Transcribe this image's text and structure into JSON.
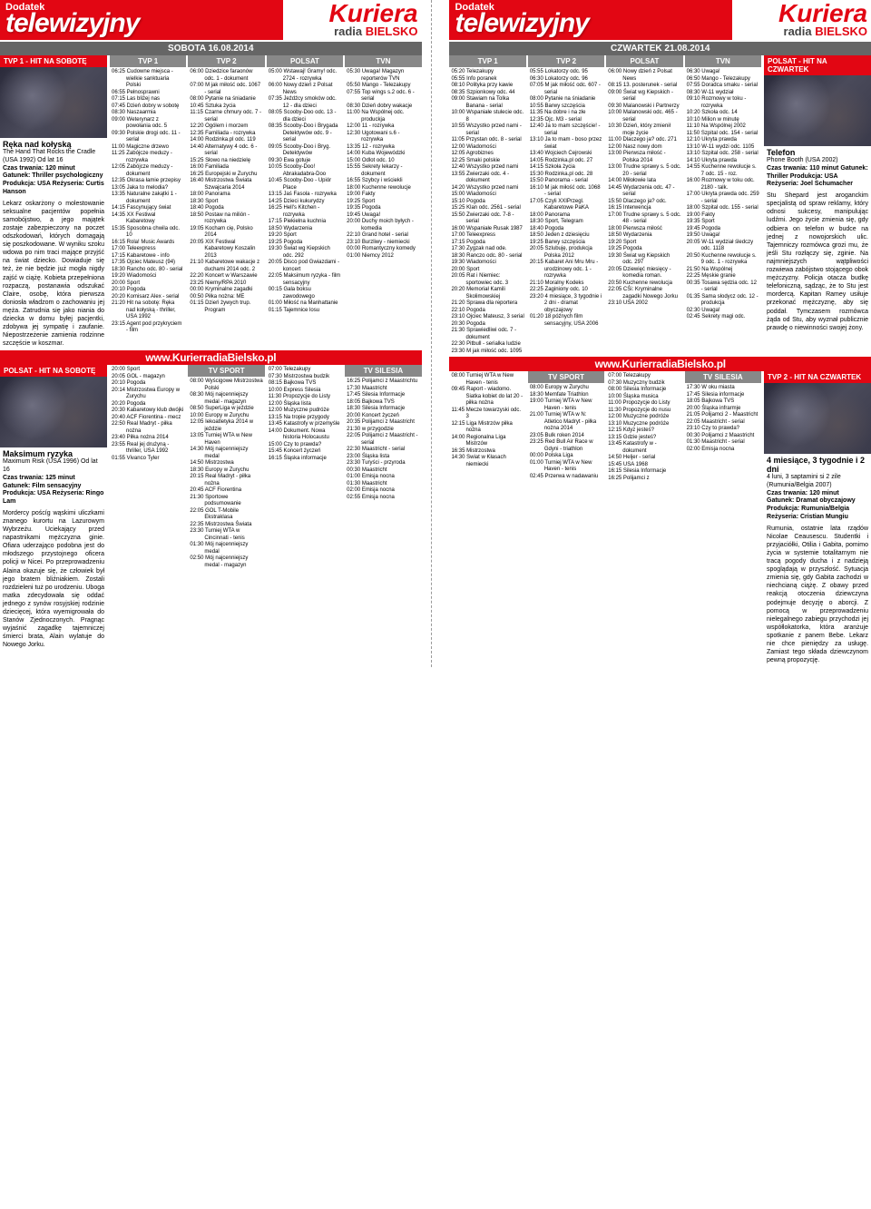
{
  "brand": {
    "kuriera": "Kuriera",
    "radio": "radia",
    "bielsko": "BIELSKO",
    "dodatek": "Dodatek",
    "telewizyjny": "telewizyjny"
  },
  "left": {
    "date": "SOBOTA 16.08.2014",
    "channels": [
      "TVP 1",
      "TVP 2",
      "POLSAT",
      "TVN"
    ],
    "hit1": {
      "bar": "TVP 1 - HIT NA SOBOTĘ",
      "title": "Ręka nad kołyską",
      "sub": "The Hand That Rocks the Cradle (USA 1992) Od lat 16",
      "info": "Czas trwania: 120 minut\nGatunek: Thriller psychologiczny\nProdukcja: USA\nReżyseria: Curtis Hanson",
      "desc": "Lekarz oskarżony o molestowanie seksualne pacjentów popełnia samobójstwo, a jego majątek zostaje zabezpieczony na poczet odszkodowań, których domagają się poszkodowane. W wyniku szoku wdowa po nim traci mające przyjść na świat dziecko. Dowiaduje się też, że nie będzie już mogła nigdy zajść w ciążę. Kobieta przepełniona rozpaczą, postanawia odszukać Claire, osobę, która pierwsza doniosła władzom o zachowaniu jej męża. Zatrudnia się jako niania do dziecka w domu byłej pacjentki, zdobywa jej sympatię i zaufanie. Niepostrzeżenie zamienia rodzinne szczęście w koszmar."
    },
    "hit2": {
      "bar": "POLSAT - HIT NA SOBOTĘ",
      "title": "Maksimum ryzyka",
      "sub": "Maximum Risk (USA 1996) Od lat 16",
      "info": "Czas trwania: 125 minut\nGatunek: Film sensacyjny\nProdukcja: USA\nReżyseria: Ringo Lam",
      "desc": "Mordercy poścíg wąskimi uliczkami znanego kurortu na Lazurowym Wybrzeżu. Uciekający przed napastnikami mężczyzna ginie. Ofiara uderzająco podobna jest do młodszego przystojnego oficera policji w Nicei. Po przeprowadzeniu Alaina okazuje się, że człowiek był jego bratem bliźniakiem. Zostali rozdzieleni tuż po urodzeniu. Uboga matka zdecydowała się oddać jednego z synów rosyjskiej rodzinie dziecięcej, która wyemigrowała do Stanów Zjednoczonych. Pragnąc wyjaśnić zagadkę tajemniczej śmierci brata, Alain wylatuje do Nowego Jorku."
    },
    "top_rows": {
      "TVP 1": [
        "06:25 Cudowne miejsca - wielkie sanktuaria Polski",
        "06:55 Pełnosprawni",
        "07:15 Las bliżej nas",
        "07:45 Dzień dobry w sobotę",
        "08:30 Naszaarmia",
        "09:00 Weterynarz z powołania odc. 5",
        "09:30 Polskie drogi odc. 11 - serial",
        "11:00 Magiczne drzewo",
        "11:25 Zabójcze meduzy - rozrywka",
        "12:05 Zabójcze meduzy - dokument",
        "12:35 Okrasa łamie przepisy",
        "13:05 Jaka to melodia?",
        "13:35 Naturalne zakątki 1 - dokument",
        "14:15 Fascynujący świat",
        "14:35 XX Festiwal Kabaretowy",
        "15:35 Sposobna chwila odc. 10",
        "16:15 Rola! Music Awards",
        "17:00 Teleexpress",
        "17:15 Kabaretowe - info",
        "17:35 Ojciec Mateusz (94)",
        "18:30 Rancho odc. 80 - serial",
        "19:20 Wiadomości",
        "20:00 Sport",
        "20:10 Pogoda",
        "20:20 Komisarz Alex - serial",
        "21:20 Hit na sobotę: Ręka nad kołyską - thriller, USA 1992",
        "23:15 Agent pod przykryciem - film"
      ],
      "TVP 2": [
        "06:00 Dziedzice faraonów odc. 1 - dokument",
        "07:00 M jak miłość odc. 1067 - serial",
        "08:00 Pytanie na śniadanie",
        "10:45 Sztuka życia",
        "11:15 Czarne chmury odc. 7 - serial",
        "12:20 Ogólem i morzem",
        "12:35 Familiada - rozrywka",
        "14:00 Rodzinka.pl odc. 119",
        "14:40 Alternatywy 4 odc. 6 - serial",
        "15:25 Słowo na niedzielę",
        "16:00 Familiada",
        "16:25 Europejski w Zurychu",
        "16:40 Mistrzostwa Świata Szwajcaria 2014",
        "18:00 Panorama",
        "18:30 Sport",
        "18:40 Pogoda",
        "18:50 Postaw na milión - rozrywka",
        "19:05 Kocham cię, Polsko 2014",
        "20:05 XIX Festiwal Kabaretowy Koszalin 2013",
        "21:10 Kabaretowe wakacje z duchami 2014 odc. 2",
        "22:20 Koncert w Warszawie",
        "23:25 Niemy/RPA 2010",
        "00:00 Kryminalne zagadki",
        "00:50 Piłka nożna: ME",
        "01:15 Dzień żywych trup. Program"
      ],
      "POLSAT": [
        "05:00 Wstawaj! Gramy! odc. 2724 - rozrywka",
        "06:00 Nowy dzień z Polsat News",
        "07:35 Jeźdźcy smoków odc. 12 - dla dzieci",
        "08:05 Scooby-Doo odc. 13 - dla dzieci",
        "08:35 Scooby-Doo i Brygada Detektywów odc. 9 - serial",
        "09:05 Scooby-Doo i Bryg. Detektywów",
        "09:30 Ewa gotuje",
        "10:05 Scooby-Doo! Abrakadabra-Doo",
        "10:45 Scooby-Doo - Upiór Place",
        "13:15 Jaś Fasola - rozrywka",
        "14:25 Dzieci kukurydzy",
        "16:25 Hell's Kitchen - rozrywka",
        "17:15 Piekielna kuchnia",
        "18:50 Wydarzenia",
        "19:20 Sport",
        "19:25 Pogoda",
        "19:30 Świat wg Kiepskich odc. 292",
        "20:05 Disco pod Gwiazdami - koncert",
        "22:05 Maksimum ryzyka - film sensacyjny",
        "00:15 Gala boksu zawodowego",
        "01:00 Miłość na Manhattanie",
        "01:15 Tajemnice losu"
      ],
      "TVN": [
        "05:30 Uwaga! Magazyn reporterów TVN",
        "05:50 Mango - Telezakupy",
        "07:55 Top wings s.2 odc. 6 - serial",
        "08:30 Dzień dobry wakacje",
        "11:00 Na Wspólnej odc. produckja",
        "12:00 11 - rozrywka",
        "12:30 Ugotowani s.6 - rozrywka",
        "13:35 12 - rozrywka",
        "14:00 Kuba Wojewódzki",
        "15:00 Odlot odc. 10",
        "15:55 Sekrety lekarzy - dokument",
        "16:55 Szybcy i wściekli",
        "18:00 Kuchenne rewolucje",
        "19:00 Fakty",
        "19:25 Sport",
        "19:35 Pogoda",
        "19:45 Uwaga!",
        "20:00 Duchy moich byłych - komedia",
        "22:10 Grand hotel - serial",
        "23:10 Burzliwy - niemiecki",
        "00:00 Romantyczny komedy",
        "01:00 Niemcy 2012"
      ]
    },
    "row2_bar": "TV SPORT",
    "row2_bar2": "TV SILESIA",
    "bottom_rows": {
      "TVP 1": [
        "20:00 Sport",
        "20:05 GOL - magazyn",
        "20:10 Pogoda",
        "20:14 Mistrzostwa Europy w Zurychu",
        "20:20 Pogoda",
        "20:30 Kabaretowy klub dwójki",
        "20:40 ACF Fiorentina - mecz",
        "22:50 Real Madryt - piłka nożna",
        "23:40 Piłka nożna 2014",
        "23:55 Real jej drużyną - thriller, USA 1992",
        "01:55 Vivanco Tyler"
      ],
      "TVP 2": [
        "08:00 Wyścigowe Mistrzostwa Polski",
        "08:30 Mój najcenniejszy medal - magazyn",
        "08:50 SuperLiga w jeździe",
        "10:00 Europy w Zurychu",
        "12:05 Iekoatletyka 2014 w jeździe",
        "13:05 Turniej WTA w New Haven",
        "14:30 Mój najcenniejszy medal",
        "14:50 Mistrzostwa",
        "18:30 Europy w Zurychu",
        "20:15 Real Madryt - piłka nożna",
        "20:45 ACF Fiorentina",
        "21:30 Sportowe podsumowanie",
        "22:05 GOL T-Mobile Ekstraklasa",
        "22:35 Mistrzostwa Świata",
        "23:30 Turniej WTA w Cincinnati - tenis",
        "01:30 Mój najcenniejszy medal",
        "02:50 Mój najcenniejszy medal - magazyn"
      ],
      "POLSAT": [
        "07:00 Telezakupy",
        "07:30 Mistrzostwa budzik",
        "08:15 Bajkowa TVS",
        "10:00 Express Silesia",
        "11:30 Propozycje do Listy",
        "12:00 Śląska lista",
        "12:00 Muzyczne pudróże",
        "13:15 Na tropie przygody",
        "13:45 Katastrofy w przemyśle",
        "14:00 Dokument. Nowa historia Holocaustu",
        "15:00 Czy to prawda?",
        "15:45 Koncert życzeń",
        "16:15 Śląska informacje"
      ],
      "TVN": [
        "16:25 Polijamci z Maastrichtu",
        "17:30 Maastricht",
        "17:45 Silesia Informacje",
        "18:05 Bajkowa TVS",
        "18:30 Silesia Informacje",
        "20:00 Koncert życzeń",
        "20:35 Polijamci z Maastricht",
        "21:30 w przygodzie",
        "22:05 Polijamci z Maastricht - serial",
        "22:30 Maastricht - serial",
        "23:00 Śląska lista",
        "23:30 Turyści - przyroda",
        "00:30 Maastricht",
        "01:00 Emisja nocna",
        "01:30 Maastricht",
        "02:00 Emisja nocna",
        "02:55 Emisja nocna"
      ]
    },
    "footer": "www.KurierradiaBielsko.pl"
  },
  "right": {
    "date": "CZWARTEK 21.08.2014",
    "channels": [
      "TVP 1",
      "TVP 2",
      "POLSAT",
      "TVN"
    ],
    "hit1": {
      "bar": "POLSAT - HIT NA CZWARTEK",
      "title": "Telefon",
      "sub": "Phone Booth (USA 2002)",
      "info": "Czas trwania: 110 minut\nGatunek: Thriller\nProdukcja: USA\nReżyseria: Joel Schumacher",
      "desc": "Stu Shepard jest aroganckim specjalistą od spraw reklamy, który odnosi sukcesy, manipulując ludźmi. Jego życie zmienia się, gdy odbiera on telefon w budce na jednej z nowojorskich ulic. Tajemniczy rozmówca grozi mu, że jeśli Stu rozłączy się, zginie. Na najmniejszych wątpliwości rozwiewa zabójstwo stojącego obok mężczyzny. Policja otacza budkę telefoniczną, sądząc, że to Stu jest mordercą. Kapitan Ramey usiłuje przekonać mężczyznę, aby się poddał. Tymczasem rozmówca żąda od Stu, aby wyznał publicznie prawdę o niewinności swojej żony."
    },
    "hit2": {
      "bar": "TVP 2 - HIT NA CZWARTEK",
      "title": "4 miesiące, 3 tygodnie i 2 dni",
      "sub": "4 luni, 3 saptamini si 2 zile (Rumunia/Belgia 2007)",
      "info": "Czas trwania: 120 minut\nGatunek: Dramat obyczajowy\nProdukcja: Rumunia/Belgia\nReżyseria: Cristian Mungiu",
      "desc": "Rumunia, ostatnie lata rządów Nicolae Ceausescu. Studentki i przyjaciółki, Otilia i Gabita, pomimo życia w systemie totalitarnym nie tracą pogody ducha i z nadzieją spoglądają w przyszłość. Sytuacja zmienia się, gdy Gabita zachodzi w niechcianą ciążę. Z obawy przed reakcją otoczenia dziewczyna podejmuje decyzję o aborcji. Z pomocą w przeprowadzeniu nielegalnego zabiegu przychodzi jej współlokatorka, która aranżuje spotkanie z panem Bebe. Lekarz nie chce pieniędzy za usługę. Zamiast tego składa dziewczynom pewną propozycję."
    },
    "top_rows": {
      "TVP 1": [
        "05:20 Telezakupy",
        "05:55 Info poranek",
        "08:10 Polityka przy kawie",
        "08:35 Szpionkowy odc. 44",
        "09:00 Stawiam na Tolka Banana - serial",
        "10:00 Wspaniałe stulecie odc. 8",
        "10:55 Wszystko przed nami - serial",
        "11:05 Przystan odc. 8 - serial",
        "12:00 Wiadomości",
        "12:05 Agrobiznes",
        "12:25 Smaki polskie",
        "12:40 Wszystko przed nami",
        "13:55 Zwierzaki odc. 4 - dokument",
        "14:20 Wszystko przed nami",
        "15:00 Wiadomości",
        "15:10 Pogoda",
        "15:25 Klan odc. 2561 - serial",
        "15:50 Zwierzaki odc. 7-8 - serial",
        "16:00 Wspaniałe Rusak 1987",
        "17:00 Teleexpress",
        "17:15 Pogoda",
        "17:30 Zygzak nad ode.",
        "18:30 Ranczo odc. 80 - serial",
        "19:30 Wiadomości",
        "20:00 Sport",
        "20:05 Rat i Niemiec: sportowiec odc. 3",
        "20:20 Memoriał Kamili Skolimowskiej",
        "21:20 Sprawa dla reportera",
        "22:10 Pogoda",
        "23:10 Ojciec Mateusz, 3 serial",
        "20:30 Pogoda",
        "21:30 Sprawiedliwi odc. 7 - dokument",
        "22:30 Pitbull - serialka ludzie",
        "23:30 M jak miłość odc. 1095"
      ],
      "TVP 2": [
        "05:55 Lokatorzy odc. 95",
        "06:30 Lokatorzy odc. 96",
        "07:05 M jak miłość odc. 607 - serial",
        "08:00 Pytanie na śniadanie",
        "10:55 Barwy szczęścia",
        "11:35 Na dobre i na złe",
        "12:35 Ojc. M3 - serial",
        "12:40 Ja to mam szczęście! - serial",
        "13:10 Ja to mam - boso przez świat",
        "13:40 Wojciech Cejrowski",
        "14:05 Rodzinka.pl odc. 27",
        "14:15 Szkoła życia",
        "15:30 Rodzinka.pl odc. 28",
        "15:50 Panorama - serial",
        "16:10 M jak miłość odc. 1068 - serial",
        "17:05 Czyli XXIPrzegl. Kabaretowe PaKA",
        "18:00 Panorama",
        "18:30 Sport, Telegram",
        "18:40 Pogoda",
        "18:50 Jeden z dziesięciu",
        "19:25 Barwy szczęścia",
        "20:05 Szlubuję, produkcja Polska 2012",
        "20:15 Kabaret Ani Mru Mru - urodzinowy odc. 1 - rozrywka",
        "21:10 Moralny Kodeks",
        "22:25 Zaginiony odc. 10",
        "23:20 4 miesiące, 3 tygodnie i 2 dni - dramat obyczajowy",
        "01:20 18 późnych film sensacyjny, USA 2006"
      ],
      "POLSAT": [
        "06:00 Nowy dzień z Polsat News",
        "08:15 13. posterunek - serial",
        "09:00 Świat wg Kiepskich - serial",
        "09:30 Malanowski i Partnerzy",
        "10:00 Malanowski odc. 465 - serial",
        "10:30 Dzień, który zmienił moje życie",
        "11:00 Dlaczego ja? odc. 271",
        "12:00 Nasz nowy dom",
        "13:00 Pierwsza miłość - Polska 2014",
        "13:00 Trudne sprawy s. 5 odc. 20 - serial",
        "14:00 Miłołowie lata",
        "14:45 Wydarzenia odc. 47 - serial",
        "15:50 Dlaczego ja? odc.",
        "16:15 Interwencja",
        "17:00 Trudne sprawy s. 5 odc. 48 - serial",
        "18:00 Pierwsza miłość",
        "18:50 Wydarzenia",
        "19:20 Sport",
        "19:25 Pogoda",
        "19:30 Świat wg Kiepskich odc. 297",
        "20:05 Dziewięć miesięcy - komedia roman.",
        "20:50 Kuchenne rewolucja",
        "22:05 CŚi: Kryminalne zagadki Nowego Jorku",
        "23:10 USA 2002"
      ],
      "TVN": [
        "06:30 Uwaga!",
        "06:50 Mango - Telezakupy",
        "07:55 Doradca smaku - serial",
        "08:30 W-11 wydział",
        "09:10 Rozmowy w toku - rozrywka",
        "10:20 Szkoła odc. 14",
        "10:10 Milion w minutę",
        "11:10 Na Wspólnej 2002",
        "11:50 Szpital odc. 154 - serial",
        "12:10 Ukryta prawda",
        "13:10 W-11 wydzi odc. 1105",
        "13:10 Szpital odc. 258 - serial",
        "14:10 Ukryta prawda",
        "14:55 Kuchenne rewolucje s. 7 odc. 15 - roz.",
        "16:00 Rozmowy w toku odc. 2180 - talk.",
        "17:00 Ukryta prawda odc. 259 - serial",
        "18:00 Szpital odc. 155 - serial",
        "19:00 Fakty",
        "19:35 Sport",
        "19:45 Pogoda",
        "19:50 Uwaga!",
        "20:05 W-11 wydział śledczy odc. 1118",
        "20:50 Kuchenne rewolucje s. 9 odc. 1 - rozrywka",
        "21:50 Na Wspólnej",
        "22:25 Męskie granie",
        "00:35 Tosawa sędzia odc. 12 - serial",
        "01:35 Sama słodycz odc. 12 - produkcja",
        "02:30 Uwaga!",
        "02:45 Sekrety magi odc."
      ]
    },
    "row2_bar": "TV SPORT",
    "row2_bar2": "TV SILESIA",
    "bottom_rows": {
      "TVP 1": [
        "08:00 Turniej WTA w New Haven - tenis",
        "09:45 Raport - wiadomo. Siatka kobiet do lat 20 - piłka nożna",
        "11:45 Mecze towarzyski odc. 3",
        "12:15 Liga Mistrzów piłka nożna",
        "14:00 Regionalna Liga Mistrzów",
        "16:35 Mistrzostwa",
        "14:30 Swiat w Kłasach niemiecki"
      ],
      "TVP 2": [
        "08:00 Europy w Zurychu",
        "18:30 Memfate Triathlon",
        "19:00 Turniej WTA w New Haven - tenis",
        "21:00 Turniej WTA w N: Atletico Madryt - piłka nożna 2014",
        "23:05 Bulk roken 2014",
        "23:25 Red Bull Air Race w Gdyni - triathlon",
        "00:00 Polska Liga",
        "01:00 Turniej WTA w New Haven - tenis",
        "02:45 Przerwa w nadawaniu"
      ],
      "POLSAT": [
        "07:00 Telezakupy",
        "07:30 Muzyczny budzik",
        "08:00 Silesia Informacje",
        "10:00 Śląska musica",
        "11:00 Propozycje do Listy",
        "11:30 Propozycje do nusu",
        "12:00 Muzyczne podróże",
        "13:10 Muzyczne podróże",
        "12:15 Kdyz jesteś?",
        "13:15 Gdzie jesteś?",
        "13:45 Katastrofy w - dokument",
        "14:50 Heljer - serial",
        "15:45 USA 1968",
        "16:15 Silesia Informacje",
        "16:25 Polijamci z"
      ],
      "TVN": [
        "17:30 W oku miasta",
        "17:45 Silesia informacje",
        "18:05 Bajkowa TVS",
        "20:00 Śląska infrarmje",
        "21:05 Polijamci 2 - Maastricht",
        "22:05 Maastricht - serial",
        "23:10 Czy to prawda?",
        "00:30 Polijamci z Maastricht",
        "01:30 Maastricht - serial",
        "02:00 Emisja nocna"
      ]
    },
    "footer": "www.KurierradiaBielsko.pl"
  }
}
